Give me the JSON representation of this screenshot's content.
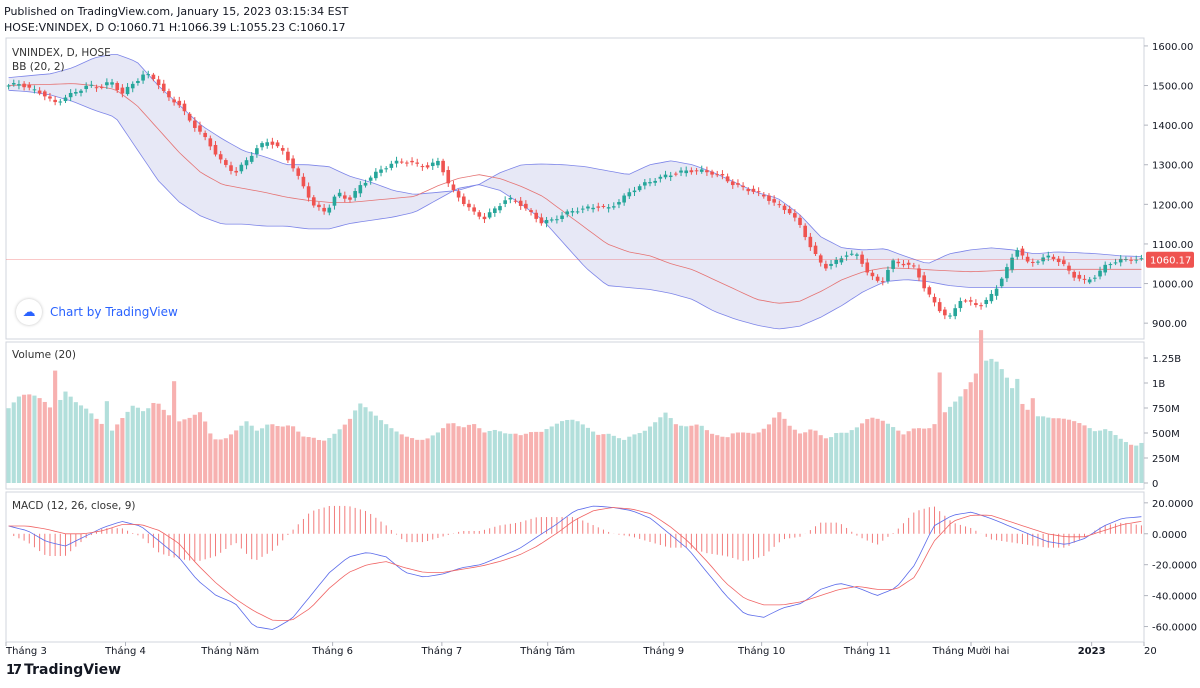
{
  "header": {
    "published": "Published on TradingView.com, January 15, 2023 03:15:34 EST",
    "ohlc": "HOSE:VNINDEX, D O:1060.71 H:1066.39 L:1055.23 C:1060.17"
  },
  "branding": {
    "chart_by": "Chart by TradingView",
    "logo": "TradingView"
  },
  "colors": {
    "up": "#26a69a",
    "down": "#ef5350",
    "up_vol": "#b2dfdb",
    "down_vol": "#f7b1b0",
    "band_fill": "#e3e4f5",
    "band_line": "#7d85e8",
    "basis": "#e57373",
    "macd": "#5b6bea",
    "signal": "#f06565",
    "price_label": "#ef5350"
  },
  "chart_data": [
    {
      "type": "candlestick",
      "pane": "price",
      "title": "VNINDEX, D, HOSE",
      "indicator": "BB (20, 2)",
      "ylim": [
        860,
        1620
      ],
      "y_ticks": [
        900,
        1000,
        1100,
        1200,
        1300,
        1400,
        1500,
        1600
      ],
      "y_tick_labels": [
        "900.00",
        "1000.00",
        "1100.00",
        "1200.00",
        "1300.00",
        "1400.00",
        "1500.00",
        "1600.00"
      ],
      "last_price": 1060.17,
      "last_price_label": "1060.17",
      "close_anchors": [
        1500,
        1505,
        1490,
        1480,
        1455,
        1470,
        1485,
        1500,
        1495,
        1510,
        1480,
        1505,
        1530,
        1515,
        1470,
        1455,
        1410,
        1380,
        1340,
        1300,
        1280,
        1310,
        1345,
        1360,
        1340,
        1300,
        1245,
        1195,
        1180,
        1230,
        1210,
        1245,
        1270,
        1290,
        1305,
        1310,
        1300,
        1295,
        1310,
        1240,
        1210,
        1180,
        1165,
        1190,
        1215,
        1205,
        1180,
        1155,
        1160,
        1175,
        1185,
        1190,
        1195,
        1190,
        1210,
        1235,
        1250,
        1262,
        1272,
        1280,
        1285,
        1285,
        1280,
        1270,
        1250,
        1240,
        1230,
        1215,
        1195,
        1180,
        1140,
        1080,
        1040,
        1055,
        1075,
        1070,
        1020,
        1000,
        1055,
        1050,
        1040,
        980,
        940,
        910,
        960,
        950,
        945,
        980,
        1030,
        1090,
        1050,
        1060,
        1070,
        1050,
        1020,
        1005,
        1020,
        1050,
        1058,
        1062,
        1060
      ],
      "bb_upper_anchors": [
        1520,
        1525,
        1530,
        1545,
        1570,
        1580,
        1560,
        1500,
        1450,
        1400,
        1365,
        1335,
        1320,
        1300,
        1300,
        1295,
        1270,
        1255,
        1235,
        1225,
        1230,
        1235,
        1250,
        1280,
        1300,
        1302,
        1300,
        1295,
        1285,
        1275,
        1300,
        1310,
        1300,
        1280,
        1255,
        1230,
        1215,
        1175,
        1118,
        1090,
        1085,
        1088,
        1068,
        1050,
        1075,
        1085,
        1090,
        1085,
        1075,
        1080,
        1078,
        1075,
        1070,
        1068
      ],
      "bb_lower_anchors": [
        1488,
        1484,
        1476,
        1460,
        1438,
        1420,
        1340,
        1260,
        1205,
        1170,
        1150,
        1150,
        1145,
        1145,
        1138,
        1138,
        1152,
        1160,
        1168,
        1180,
        1210,
        1240,
        1250,
        1235,
        1200,
        1160,
        1100,
        1040,
        995,
        990,
        985,
        975,
        960,
        930,
        910,
        895,
        885,
        892,
        915,
        945,
        980,
        1005,
        1010,
        1005,
        995,
        990,
        990,
        990,
        990,
        990,
        990,
        990,
        990,
        990
      ],
      "bb_basis_anchors": [
        1500,
        1502,
        1503,
        1505,
        1500,
        1490,
        1450,
        1390,
        1330,
        1280,
        1250,
        1240,
        1230,
        1218,
        1210,
        1205,
        1205,
        1210,
        1215,
        1220,
        1245,
        1265,
        1275,
        1265,
        1245,
        1220,
        1180,
        1140,
        1100,
        1080,
        1070,
        1050,
        1035,
        1010,
        985,
        960,
        950,
        955,
        980,
        1010,
        1030,
        1040,
        1038,
        1035,
        1032,
        1030,
        1032,
        1035,
        1036,
        1036,
        1036,
        1036,
        1036,
        1036
      ]
    },
    {
      "type": "bar",
      "pane": "volume",
      "title": "Volume (20)",
      "ylim": [
        0,
        1.35
      ],
      "y_ticks": [
        0,
        0.25,
        0.5,
        0.75,
        1.0,
        1.25
      ],
      "y_tick_labels": [
        "0",
        "250M",
        "500M",
        "750M",
        "1B",
        "1.25B"
      ],
      "value_anchors_billions": [
        0.88,
        0.92,
        0.85,
        0.75,
        0.62,
        0.8,
        0.72,
        0.7,
        0.64,
        0.6,
        0.68,
        0.75,
        0.64,
        0.72,
        0.6,
        0.55,
        0.62,
        0.74,
        0.52,
        0.46,
        0.5,
        0.56,
        0.45,
        0.52,
        0.5,
        0.55,
        0.48,
        0.52,
        0.45,
        0.5,
        0.56,
        0.7,
        0.62,
        0.55,
        0.5,
        0.48,
        0.5,
        0.48,
        0.5,
        0.56,
        0.48,
        0.52,
        0.45,
        0.5,
        0.5,
        0.56,
        0.55,
        0.5,
        0.52,
        0.55,
        0.55,
        0.5,
        0.45,
        0.5,
        0.5,
        0.52,
        0.5,
        0.55,
        0.62,
        0.5,
        0.5,
        0.55,
        0.5,
        0.52,
        0.55,
        0.5,
        0.45,
        0.5,
        0.62,
        0.5,
        0.45,
        0.55,
        0.5,
        0.55,
        0.5,
        0.52,
        0.58,
        0.55,
        0.5,
        0.45,
        0.55,
        0.6,
        0.7,
        0.75,
        0.8,
        0.9,
        1.05,
        1.1,
        1.0,
        0.85,
        0.8,
        0.75,
        0.65,
        0.6,
        0.55,
        0.5,
        0.45,
        0.5,
        0.45,
        0.42,
        0.45
      ],
      "spikes": [
        [
          0.04,
          0.98
        ],
        [
          0.088,
          0.92
        ],
        [
          0.148,
          0.9
        ],
        [
          0.822,
          1.2
        ],
        [
          0.858,
          1.33
        ],
        [
          0.892,
          1.04
        ],
        [
          0.905,
          0.98
        ]
      ]
    },
    {
      "type": "line",
      "pane": "macd",
      "title": "MACD (12, 26, close, 9)",
      "ylim": [
        -70,
        27
      ],
      "y_ticks": [
        -60,
        -40,
        -20,
        0,
        20
      ],
      "y_tick_labels": [
        "-60.0000",
        "-40.0000",
        "-20.0000",
        "0.0000",
        "20.0000"
      ],
      "macd_anchors": [
        5,
        2,
        -5,
        -8,
        -2,
        4,
        8,
        5,
        -5,
        -15,
        -30,
        -40,
        -45,
        -60,
        -62,
        -55,
        -40,
        -25,
        -15,
        -12,
        -15,
        -25,
        -28,
        -26,
        -22,
        -20,
        -15,
        -10,
        -2,
        6,
        15,
        18,
        17,
        15,
        10,
        0,
        -10,
        -25,
        -40,
        -52,
        -54,
        -48,
        -45,
        -36,
        -32,
        -35,
        -40,
        -35,
        -20,
        5,
        12,
        14,
        10,
        5,
        0,
        -5,
        -7,
        -3,
        5,
        10,
        11
      ],
      "signal_anchors": [
        5,
        5,
        3,
        0,
        0,
        2,
        6,
        6,
        2,
        -6,
        -20,
        -32,
        -42,
        -50,
        -56,
        -56,
        -48,
        -35,
        -25,
        -20,
        -18,
        -22,
        -25,
        -25,
        -23,
        -21,
        -18,
        -14,
        -8,
        0,
        9,
        15,
        17,
        16,
        13,
        5,
        -5,
        -18,
        -32,
        -42,
        -46,
        -46,
        -44,
        -40,
        -36,
        -34,
        -36,
        -36,
        -28,
        -5,
        8,
        12,
        12,
        8,
        4,
        0,
        -2,
        -2,
        2,
        6,
        8
      ]
    },
    {
      "type": "axis",
      "pane": "time",
      "x_tick_labels": [
        "Tháng 3",
        "Tháng 4",
        "Tháng Năm",
        "Tháng 6",
        "Tháng 7",
        "Tháng Tám",
        "Tháng 9",
        "Tháng 10",
        "Tháng 11",
        "Tháng Mười hai",
        "2023",
        "20"
      ]
    }
  ]
}
